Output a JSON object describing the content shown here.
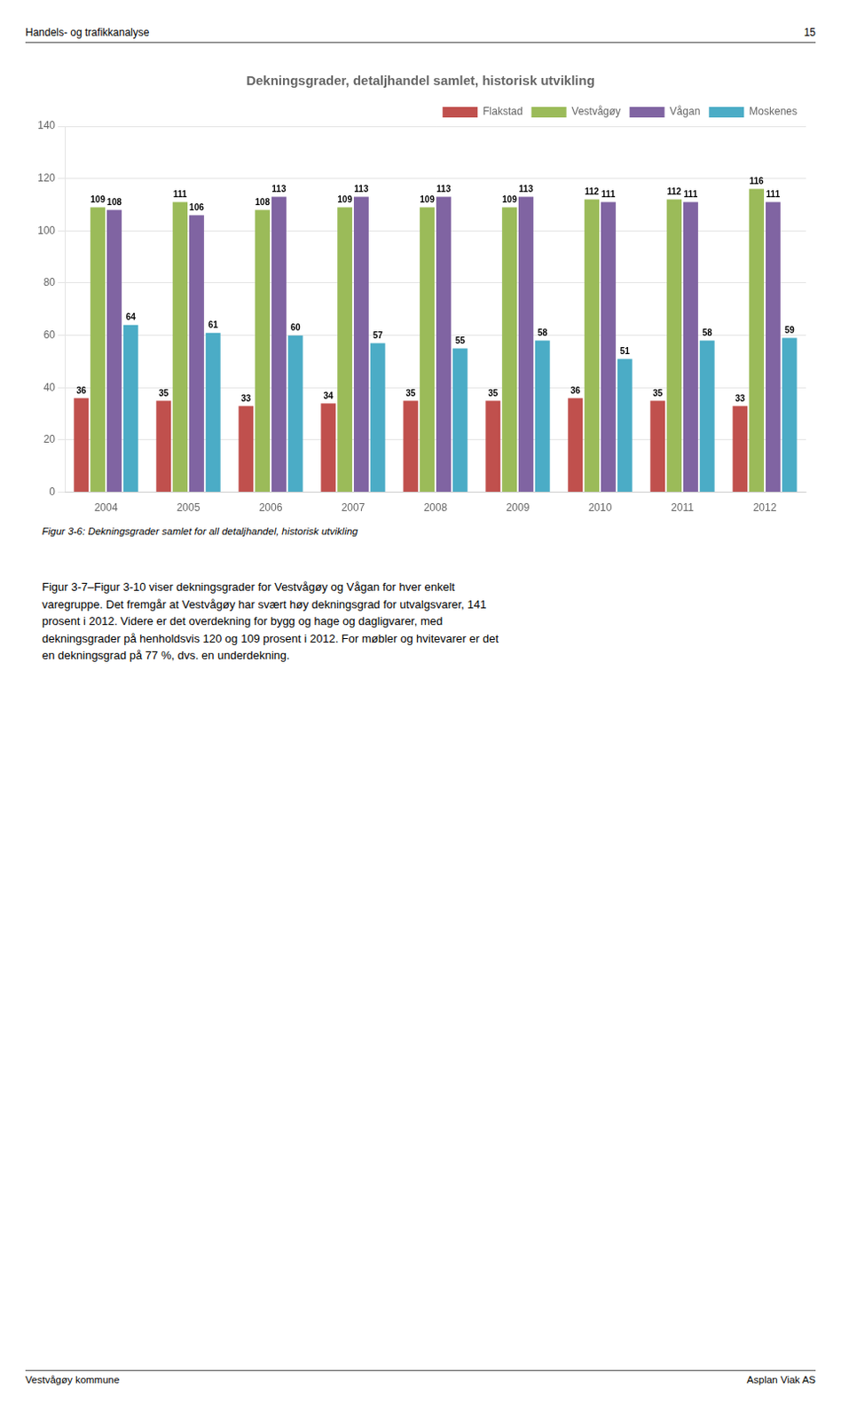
{
  "chart_data": {
    "type": "bar",
    "title": "Dekningsgrader, detaljhandel samlet, historisk utvikling",
    "categories": [
      "2004",
      "2005",
      "2006",
      "2007",
      "2008",
      "2009",
      "2010",
      "2011",
      "2012"
    ],
    "series": [
      {
        "name": "Flakstad",
        "color": "#C0504D",
        "values": [
          36,
          35,
          33,
          34,
          35,
          35,
          36,
          35,
          33
        ]
      },
      {
        "name": "Vestvågøy",
        "color": "#9BBB59",
        "values": [
          109,
          111,
          108,
          109,
          109,
          109,
          112,
          112,
          116
        ]
      },
      {
        "name": "Vågan",
        "color": "#8064A2",
        "values": [
          108,
          106,
          113,
          113,
          113,
          113,
          111,
          111,
          111
        ]
      },
      {
        "name": "Moskenes",
        "color": "#4BACC6",
        "values": [
          64,
          61,
          60,
          57,
          55,
          58,
          51,
          58,
          59
        ]
      }
    ],
    "ylim": [
      0,
      140
    ],
    "yticks": [
      0,
      20,
      40,
      60,
      80,
      100,
      120,
      140
    ],
    "grid": true,
    "legend": "upper right",
    "data_labels": true
  },
  "header_left": "Handels- og trafikkanalyse",
  "header_right": "15",
  "footer_left": "Vestvågøy kommune",
  "footer_right": "Asplan Viak AS",
  "caption": "Figur 3-6: Dekningsgrader samlet for all detaljhandel, historisk utvikling",
  "body_text": "Figur 3-7–Figur 3-10 viser dekningsgrader for Vestvågøy og Vågan for hver enkelt\nvaregruppe. Det fremgår at Vestvågøy har svært høy dekningsgrad for utvalgsvarer, 141\nprosent i 2012. Videre er det overdekning for bygg og hage og dagligvarer, med\ndekningsgrader på henholdsvis 120 og 109 prosent i 2012. For møbler og hvitevarer er det\nen dekningsgrad på 77 %, dvs. en underdekning."
}
